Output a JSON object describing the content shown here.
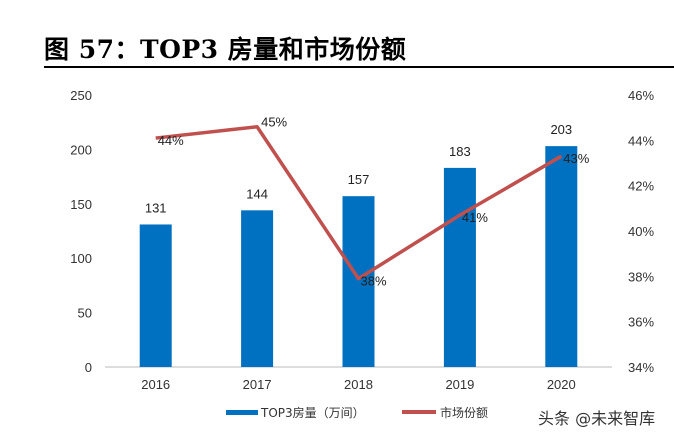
{
  "title": "图 57：TOP3 房量和市场份额",
  "watermark": "头条 @未来智库",
  "chart_data": {
    "type": "bar+line",
    "title": "",
    "categories": [
      "2016",
      "2017",
      "2018",
      "2019",
      "2020"
    ],
    "series": [
      {
        "name": "TOP3房量（万间）",
        "type": "bar",
        "axis": "left",
        "color": "#0070C0",
        "values": [
          131,
          144,
          157,
          183,
          203
        ],
        "labels": [
          "131",
          "144",
          "157",
          "183",
          "203"
        ]
      },
      {
        "name": "市场份额",
        "type": "line",
        "axis": "right",
        "color": "#C0504D",
        "values": [
          44.1,
          44.6,
          37.9,
          40.7,
          43.3
        ],
        "labels": [
          "44%",
          "45%",
          "38%",
          "41%",
          "43%"
        ]
      }
    ],
    "left_axis": {
      "ylim": [
        0,
        250
      ],
      "ticks": [
        "0",
        "50",
        "100",
        "150",
        "200",
        "250"
      ]
    },
    "right_axis": {
      "ylim": [
        34,
        46
      ],
      "ticks": [
        "34%",
        "36%",
        "38%",
        "40%",
        "42%",
        "44%",
        "46%"
      ]
    },
    "grid": false,
    "legend_position": "bottom"
  }
}
